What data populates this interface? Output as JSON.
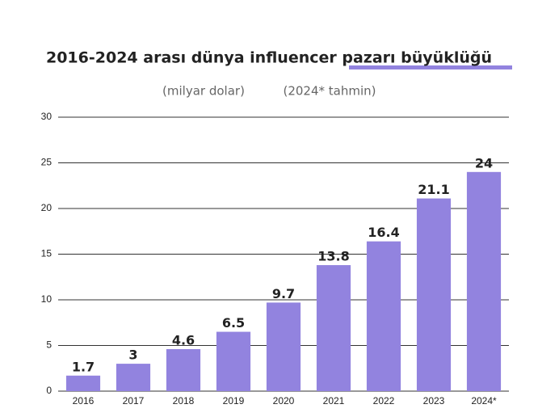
{
  "chart_data": {
    "type": "bar",
    "title": "2016-2024 arası dünya influencer pazarı büyüklüğü",
    "subtitle": "(milyar dolar)",
    "note": "(2024* tahmin)",
    "categories": [
      "2016",
      "2017",
      "2018",
      "2019",
      "2020",
      "2021",
      "2022",
      "2023",
      "2024*"
    ],
    "values": [
      1.7,
      3,
      4.6,
      6.5,
      9.7,
      13.8,
      16.4,
      21.1,
      24
    ],
    "color": "#9283df",
    "ylim": [
      0,
      30
    ],
    "yticks": [
      0,
      5,
      10,
      15,
      20,
      25,
      30
    ],
    "grid": true
  }
}
